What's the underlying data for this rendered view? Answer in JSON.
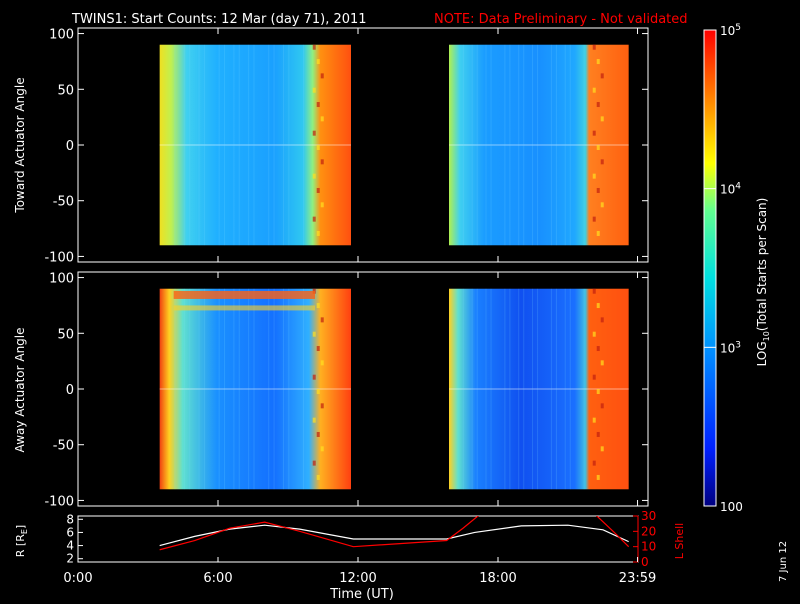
{
  "header": {
    "title": "TWINS1: Start Counts: 12 Mar (day  71), 2011",
    "note": "NOTE: Data Preliminary - Not validated"
  },
  "footer": {
    "date_stamp": "7 Jun 12"
  },
  "colors": {
    "background": "#000000",
    "axis": "#ffffff",
    "note": "#ff0000",
    "r_line": "#ffffff",
    "lshell_line": "#ff0000"
  },
  "chart_data": [
    {
      "type": "heatmap",
      "ylabel": "Toward Actuator Angle",
      "ylim": [
        -105,
        105
      ],
      "yticks": [
        100,
        50,
        0,
        -50,
        -100
      ],
      "xlim_hours": [
        0,
        24
      ],
      "data_blocks_hours": [
        [
          3.5,
          11.7
        ],
        [
          15.9,
          23.6
        ]
      ]
    },
    {
      "type": "heatmap",
      "ylabel": "Away Actuator Angle",
      "ylim": [
        -105,
        105
      ],
      "yticks": [
        100,
        50,
        0,
        -50,
        -100
      ],
      "xlim_hours": [
        0,
        24
      ],
      "data_blocks_hours": [
        [
          3.5,
          11.7
        ],
        [
          15.9,
          23.6
        ]
      ]
    },
    {
      "type": "line",
      "ylabel_left": "R [R",
      "ylabel_left_sub": "E",
      "ylabel_left_end": "]",
      "ylabel_right": "L Shell",
      "yticks_left": [
        "8",
        "6",
        "4",
        "2"
      ],
      "yticks_right": [
        "30",
        "20",
        "10",
        "0"
      ],
      "ylim_left": [
        1.5,
        8.5
      ],
      "ylim_right": [
        0,
        30
      ],
      "xlabel": "Time (UT)",
      "xtick_labels": [
        "0:00",
        "6:00",
        "12:00",
        "18:00",
        "23:59"
      ],
      "xtick_hours": [
        0,
        6,
        12,
        18,
        23.98
      ],
      "series": [
        {
          "axis": "left",
          "x": [
            3.5,
            5,
            6.5,
            8,
            9.5,
            11.8,
            15.8,
            17,
            19,
            21,
            22.5,
            23.6
          ],
          "y": [
            4.0,
            5.4,
            6.5,
            7.1,
            6.5,
            5.0,
            5.0,
            6.0,
            7.0,
            7.1,
            6.4,
            4.6
          ]
        },
        {
          "axis": "right",
          "x": [
            3.5,
            5,
            6.5,
            8,
            9.5,
            11.8,
            15.8,
            16.5,
            17.3,
            22.1,
            23.0,
            23.6
          ],
          "y": [
            8,
            14,
            22,
            26,
            20,
            10,
            14,
            22,
            32,
            32,
            19,
            10
          ]
        }
      ]
    },
    {
      "type": "colorbar",
      "label": "LOG",
      "label_sub": "10",
      "label_end": "(Total Starts per Scan)",
      "ticks": [
        {
          "value": 100000,
          "base": "10",
          "exp": "5"
        },
        {
          "value": 10000,
          "base": "10",
          "exp": "4"
        },
        {
          "value": 1000,
          "base": "10",
          "exp": "3"
        },
        {
          "value": 100,
          "base": "100",
          "exp": ""
        }
      ],
      "range": [
        100,
        100000
      ]
    }
  ]
}
